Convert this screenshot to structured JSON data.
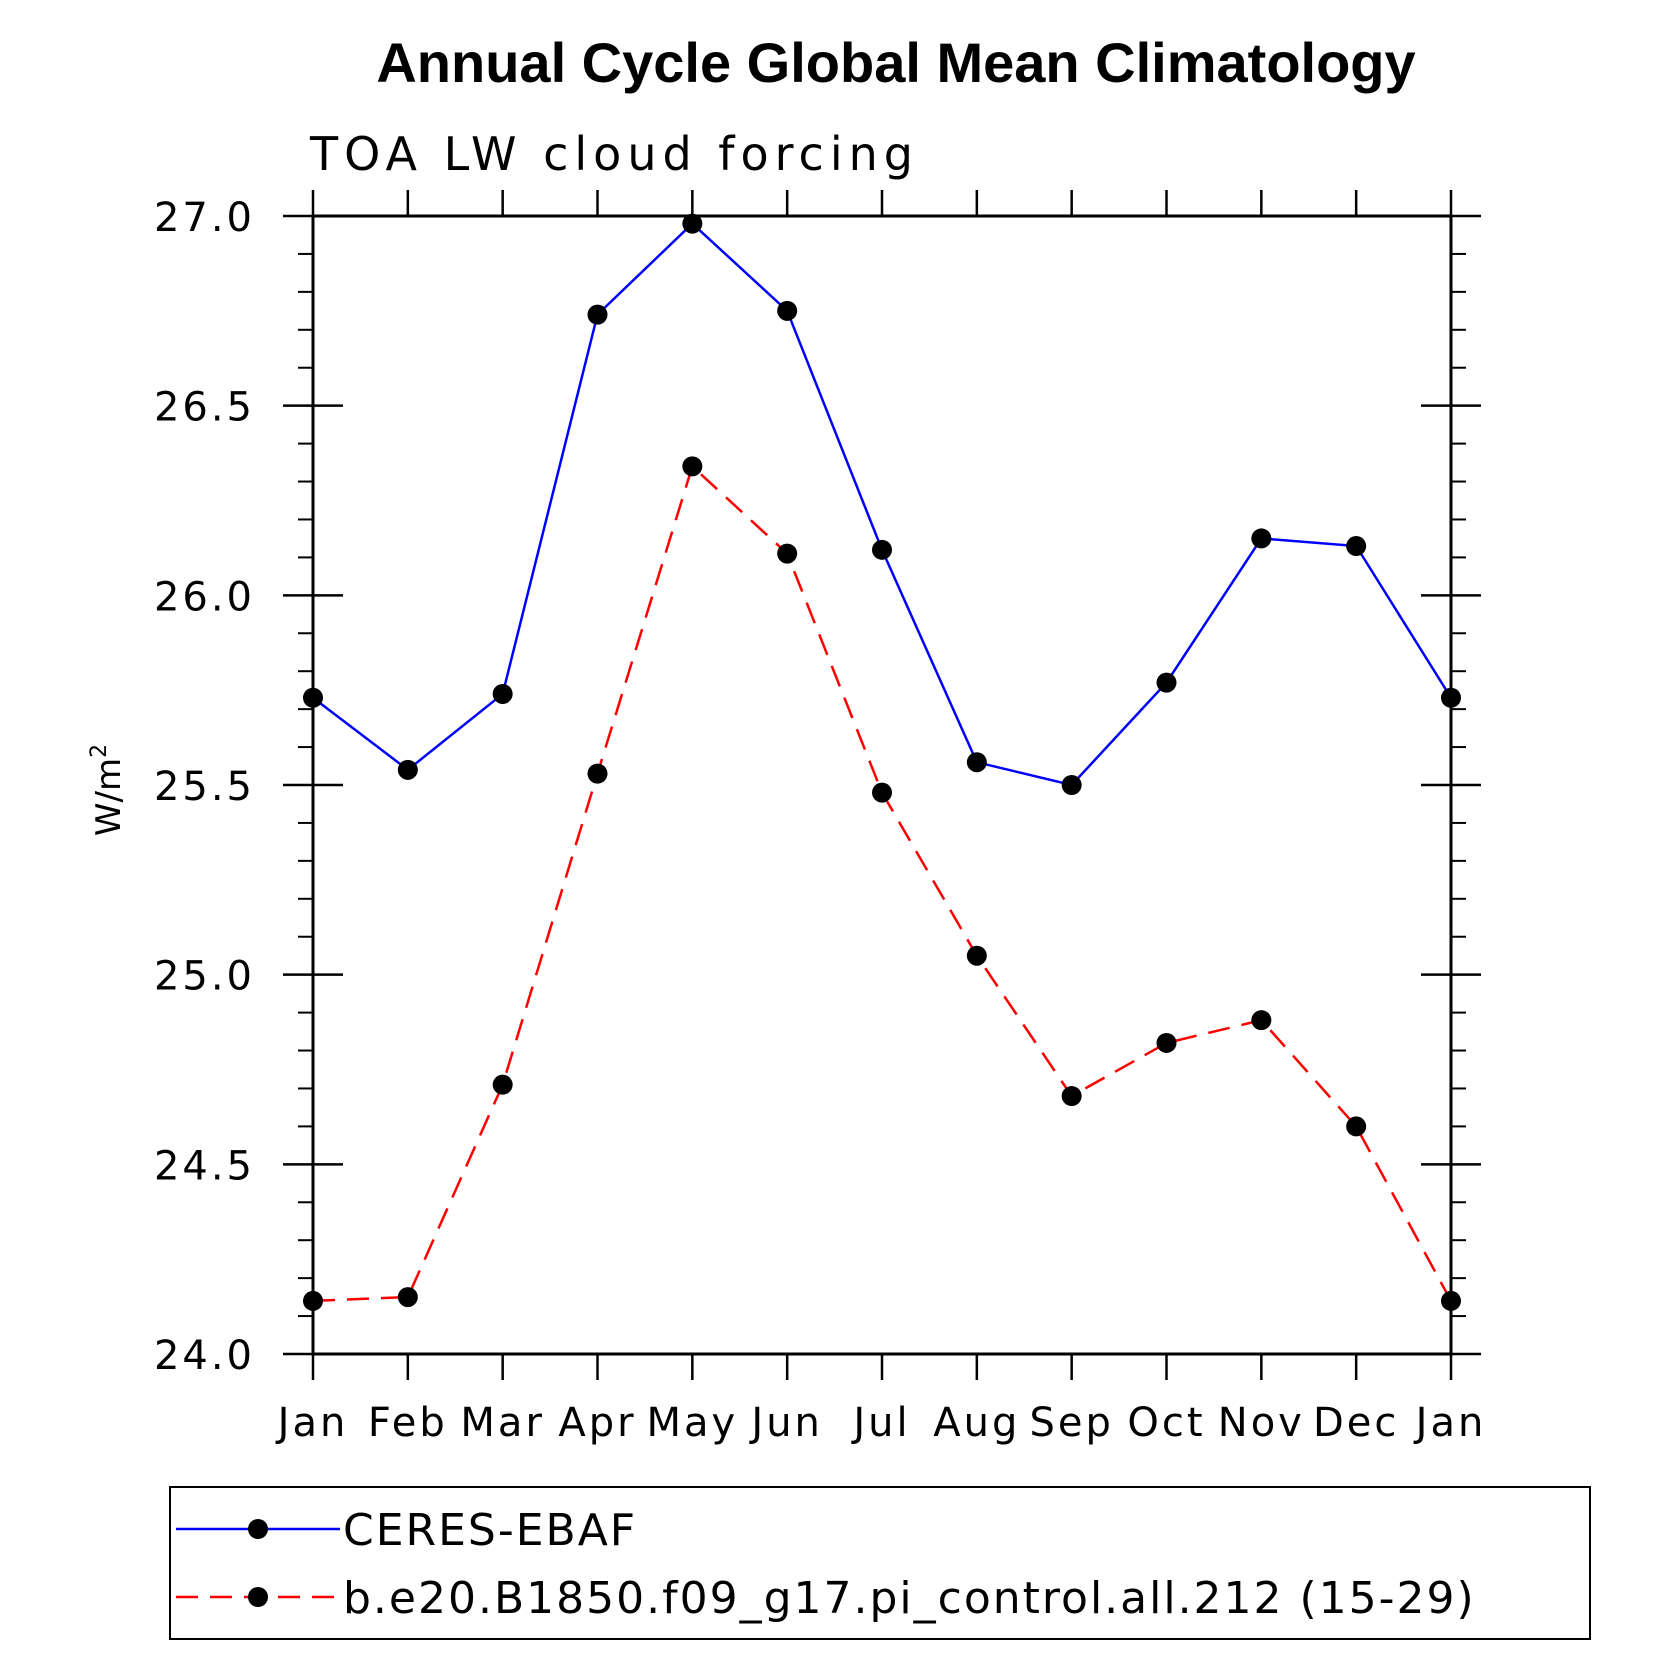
{
  "chart_data": {
    "type": "line",
    "title": "Annual Cycle Global Mean Climatology",
    "subtitle": "TOA LW cloud forcing",
    "ylabel": "W/m",
    "ylabel_superscript": "2",
    "xlabel": "",
    "categories": [
      "Jan",
      "Feb",
      "Mar",
      "Apr",
      "May",
      "Jun",
      "Jul",
      "Aug",
      "Sep",
      "Oct",
      "Nov",
      "Dec",
      "Jan"
    ],
    "ylim": [
      24.0,
      27.0
    ],
    "yticks": [
      "24.0",
      "24.5",
      "25.0",
      "25.5",
      "26.0",
      "26.5",
      "27.0"
    ],
    "grid": false,
    "legend_position": "bottom",
    "series": [
      {
        "name": "CERES-EBAF",
        "color": "#0000ff",
        "dash": "solid",
        "values": [
          25.73,
          25.54,
          25.74,
          26.74,
          26.98,
          26.75,
          26.12,
          25.56,
          25.5,
          25.77,
          26.15,
          26.13,
          25.73
        ]
      },
      {
        "name": "b.e20.B1850.f09_g17.pi_control.all.212 (15-29)",
        "color": "#ff0000",
        "dash": "dashed",
        "values": [
          24.14,
          24.15,
          24.71,
          25.53,
          26.34,
          26.11,
          25.48,
          25.05,
          24.68,
          24.82,
          24.88,
          24.6,
          24.14
        ]
      }
    ]
  }
}
